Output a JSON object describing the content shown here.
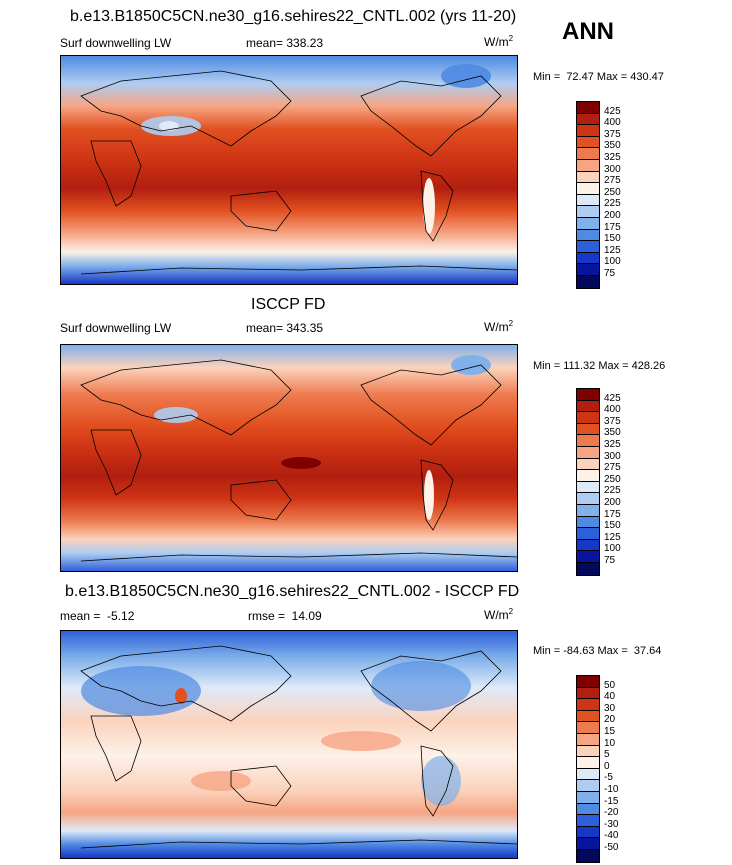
{
  "season": "ANN",
  "panels": [
    {
      "title": "b.e13.B1850C5CN.ne30_g16.sehires22_CNTL.002 (yrs 11-20)",
      "left_label": "Surf downwelling LW",
      "center_label": "mean= 338.23",
      "units_base": "W/m",
      "units_sup": "2",
      "minmax": "Min =  72.47 Max = 430.47",
      "levels": [
        "425",
        "400",
        "375",
        "350",
        "325",
        "300",
        "275",
        "250",
        "225",
        "200",
        "175",
        "150",
        "125",
        "100",
        "75"
      ],
      "colors": [
        "#7f0000",
        "#b21e0f",
        "#cf3515",
        "#e25121",
        "#ee7b4f",
        "#f6a584",
        "#fbd3bd",
        "#fdf1e8",
        "#deeaf8",
        "#aecdf1",
        "#80b1ea",
        "#4f8ae3",
        "#2f60db",
        "#1637c8",
        "#08149b",
        "#030a5c"
      ]
    },
    {
      "title": "ISCCP FD",
      "left_label": "Surf downwelling LW",
      "center_label": "mean= 343.35",
      "units_base": "W/m",
      "units_sup": "2",
      "minmax": "Min = 111.32 Max = 428.26",
      "levels": [
        "425",
        "400",
        "375",
        "350",
        "325",
        "300",
        "275",
        "250",
        "225",
        "200",
        "175",
        "150",
        "125",
        "100",
        "75"
      ],
      "colors": [
        "#7f0000",
        "#b21e0f",
        "#cf3515",
        "#e25121",
        "#ee7b4f",
        "#f6a584",
        "#fbd3bd",
        "#fdf1e8",
        "#deeaf8",
        "#aecdf1",
        "#80b1ea",
        "#4f8ae3",
        "#2f60db",
        "#1637c8",
        "#08149b",
        "#030a5c"
      ]
    },
    {
      "title": "b.e13.B1850C5CN.ne30_g16.sehires22_CNTL.002 - ISCCP FD",
      "left_label": "mean =  -5.12",
      "center_label": "rmse =  14.09",
      "units_base": "W/m",
      "units_sup": "2",
      "minmax": "Min = -84.63 Max =  37.64",
      "levels": [
        "50",
        "40",
        "30",
        "20",
        "15",
        "10",
        "5",
        "0",
        "-5",
        "-10",
        "-15",
        "-20",
        "-30",
        "-40",
        "-50"
      ],
      "colors": [
        "#7f0000",
        "#b21e0f",
        "#cf3515",
        "#e25121",
        "#ee7b4f",
        "#f6a584",
        "#fbd3bd",
        "#fdf1e8",
        "#deeaf8",
        "#aecdf1",
        "#80b1ea",
        "#4f8ae3",
        "#2f60db",
        "#1637c8",
        "#08149b",
        "#030a5c"
      ]
    }
  ]
}
